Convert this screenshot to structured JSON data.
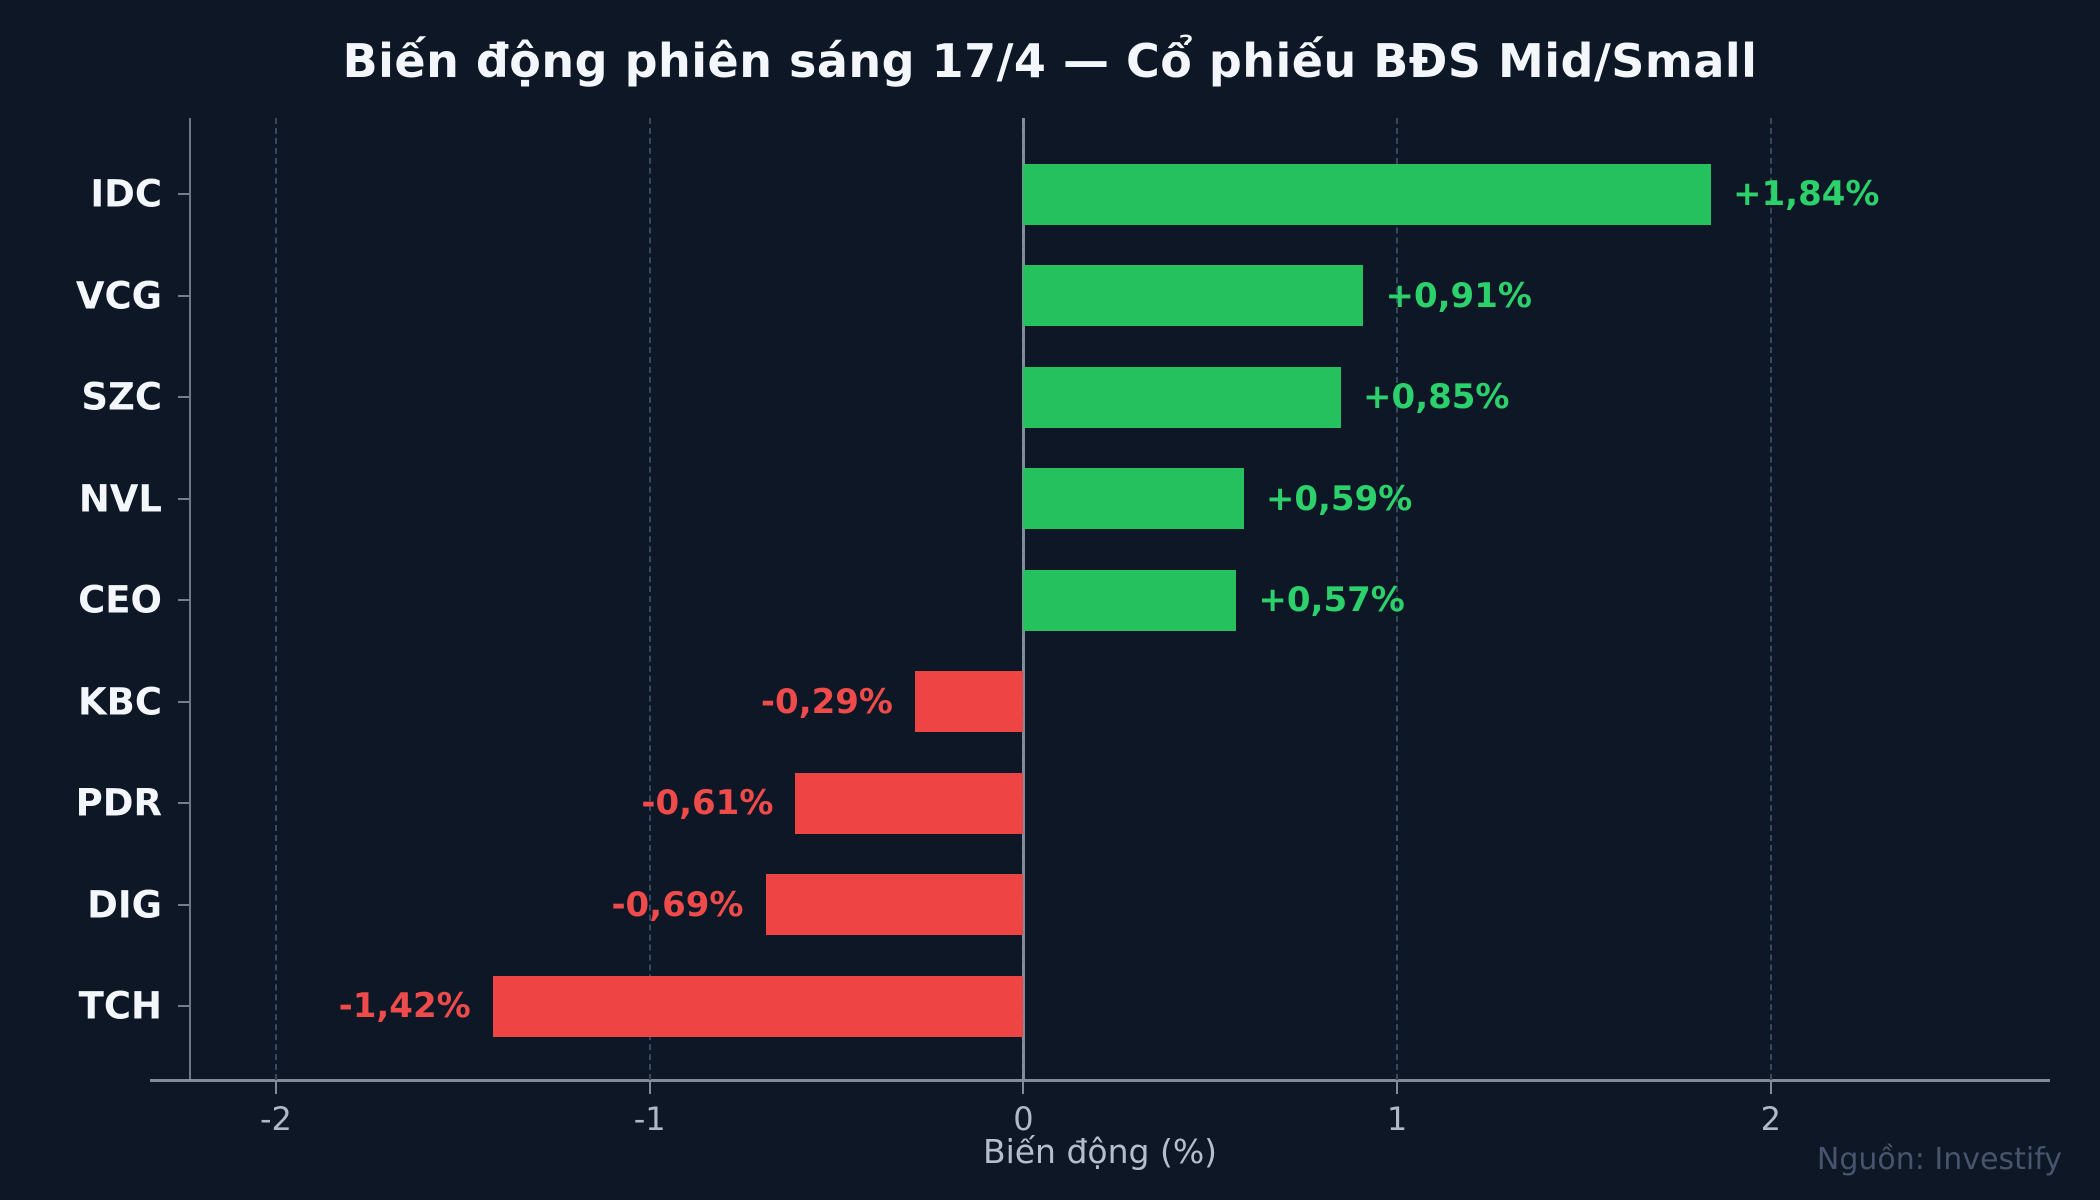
{
  "title": "Biến động phiên sáng 17/4 — Cổ phiếu BĐS Mid/Small",
  "source": "Nguồn: Investify",
  "chart_data": {
    "type": "bar",
    "orientation": "horizontal",
    "title": "Biến động phiên sáng 17/4 — Cổ phiếu BĐS Mid/Small",
    "xlabel": "Biến động (%)",
    "ylabel": "",
    "categories": [
      "IDC",
      "VCG",
      "SZC",
      "NVL",
      "CEO",
      "KBC",
      "PDR",
      "DIG",
      "TCH"
    ],
    "values": [
      1.84,
      0.91,
      0.85,
      0.59,
      0.57,
      -0.29,
      -0.61,
      -0.69,
      -1.42
    ],
    "value_labels": [
      "+1,84%",
      "+0,91%",
      "+0,85%",
      "+0,59%",
      "+0,57%",
      "-0,29%",
      "-0,61%",
      "-0,69%",
      "-1,42%"
    ],
    "x_ticks": [
      -2,
      -1,
      0,
      1,
      2
    ],
    "x_tick_labels": [
      "-2",
      "-1",
      "0",
      "1",
      "2"
    ],
    "xlim": [
      -2.23,
      2.64
    ],
    "grid": "vertical-dashed",
    "zero_line": true,
    "legend": "none",
    "colors": {
      "background": "#0d1725",
      "positive_bar": "#25c15f",
      "negative_bar": "#ee4444",
      "positive_label": "#2dd16c",
      "negative_label": "#f04b4b",
      "gridline": "#35495f",
      "zero_line": "#8b97a5",
      "tick_label": "#aeb9c9",
      "category_label": "#f3f6fa",
      "source_text": "#46546d"
    }
  }
}
